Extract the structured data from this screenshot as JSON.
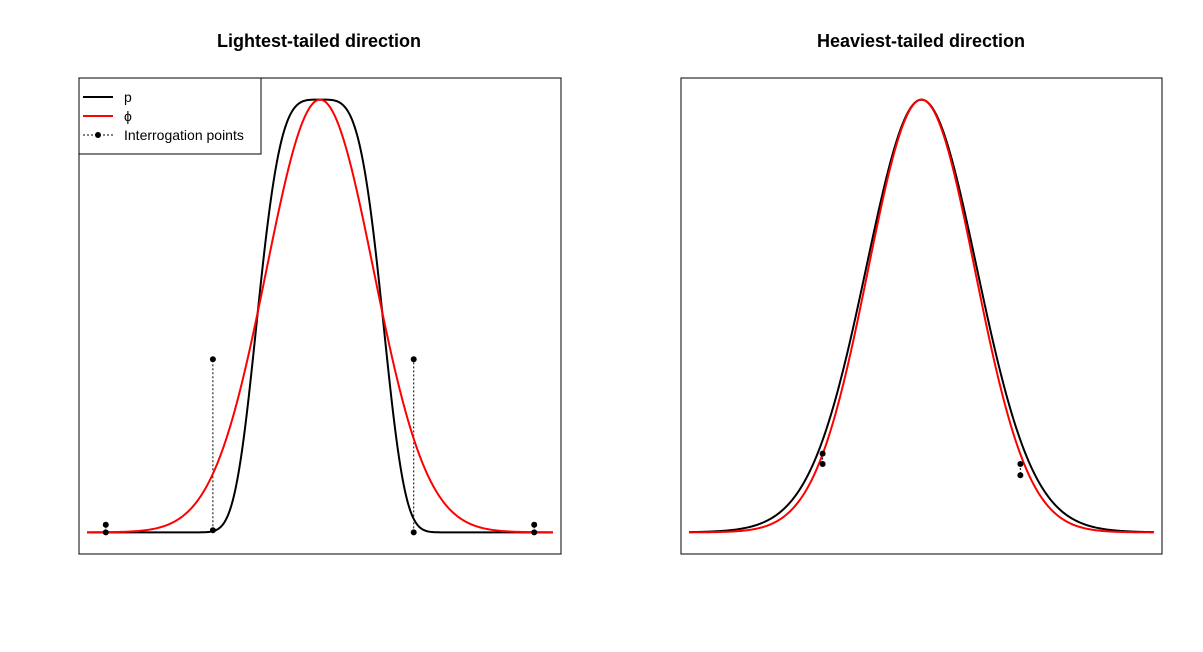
{
  "chart_data": [
    {
      "type": "line",
      "title": "Lightest-tailed direction",
      "xlabel": "",
      "ylabel": "",
      "grid": false,
      "axes_ticks": false,
      "legend_position": "top-left",
      "legend": [
        {
          "label": "p",
          "style": "solid",
          "color": "#000000"
        },
        {
          "label": "ϕ",
          "style": "solid",
          "color": "#ff0000"
        },
        {
          "label": "Interrogation points",
          "style": "dotted-with-points",
          "color": "#000000"
        }
      ],
      "xlim": [
        -4.5,
        4.5
      ],
      "ylim": [
        -0.05,
        1.05
      ],
      "series": [
        {
          "name": "p",
          "color": "#000000",
          "function": "light_tailed"
        },
        {
          "name": "ϕ",
          "color": "#ff0000",
          "function": "normal"
        }
      ],
      "interrogation_points": [
        {
          "x": -4.0,
          "p": 0.0,
          "phi": 0.0175
        },
        {
          "x": -2.0,
          "p": 0.005,
          "phi": 0.4
        },
        {
          "x": 1.75,
          "p": 0.0,
          "phi": 0.4
        },
        {
          "x": 4.0,
          "p": 0.0,
          "phi": 0.0175
        }
      ]
    },
    {
      "type": "line",
      "title": "Heaviest-tailed direction",
      "xlabel": "",
      "ylabel": "",
      "grid": false,
      "axes_ticks": false,
      "xlim": [
        -4.5,
        4.5
      ],
      "ylim": [
        -0.05,
        1.05
      ],
      "series": [
        {
          "name": "p",
          "color": "#000000",
          "function": "heavy_tailed"
        },
        {
          "name": "ϕ",
          "color": "#ff0000",
          "function": "normal"
        }
      ],
      "interrogation_points": [
        {
          "x": -1.85,
          "p": 0.182,
          "phi": 0.158
        },
        {
          "x": 1.85,
          "p": 0.158,
          "phi": 0.132
        }
      ]
    }
  ],
  "colors": {
    "p": "#000000",
    "phi": "#ff0000",
    "frame": "#000000"
  }
}
